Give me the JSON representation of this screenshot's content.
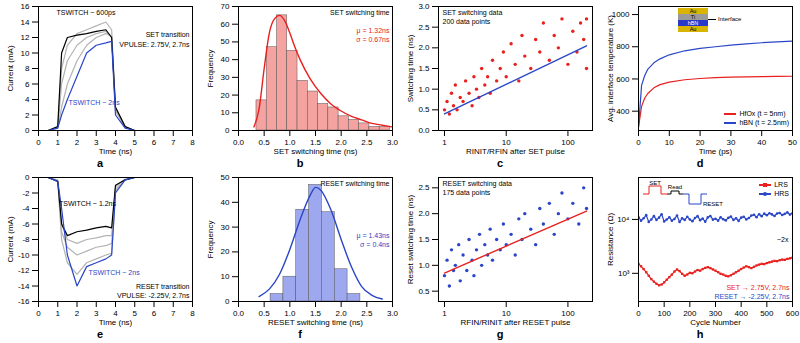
{
  "chart_data": [
    {
      "panel": "a",
      "type": "line",
      "x_label": "Time (ns)",
      "y_label": "Current (mA)",
      "xlim": [
        0,
        8
      ],
      "xticks": [
        0,
        1,
        2,
        3,
        4,
        5,
        6,
        7,
        8
      ],
      "ylim": [
        0,
        16
      ],
      "yticks": [
        0,
        2,
        4,
        6,
        8,
        10,
        12,
        14,
        16
      ],
      "x": [
        0,
        0.5,
        1,
        1.2,
        1.5,
        2,
        2.5,
        3,
        3.5,
        3.8,
        4,
        4.5,
        5,
        6,
        7,
        8
      ],
      "series": [
        {
          "color": "#b4b4b4",
          "values": [
            0,
            0,
            0.4,
            6,
            9,
            11,
            12,
            12.5,
            12.8,
            12,
            2.5,
            0.4,
            0,
            0,
            0,
            0
          ]
        },
        {
          "color": "#b4b4b4",
          "values": [
            0,
            0,
            0.3,
            3,
            6,
            9,
            11,
            12,
            12.5,
            12.2,
            2.8,
            0.4,
            0,
            0,
            0,
            0
          ]
        },
        {
          "color": "#b4b4b4",
          "values": [
            0,
            0,
            0.5,
            8,
            11,
            12.5,
            13,
            13.5,
            14,
            13,
            3,
            0.5,
            0,
            0,
            0,
            0
          ]
        },
        {
          "color": "#000000",
          "values": [
            0,
            0,
            0.5,
            10,
            12,
            12.3,
            12.5,
            12.8,
            13,
            12,
            3,
            0.5,
            0,
            0,
            0,
            0
          ]
        },
        {
          "color": "#2a46c8",
          "values": [
            0,
            0,
            0.3,
            2,
            4,
            7,
            10,
            11,
            11.3,
            11.5,
            2,
            0.3,
            0,
            0,
            0,
            0
          ]
        }
      ],
      "annotations": [
        {
          "text": "SET transition",
          "color": "#000000"
        },
        {
          "text": "VPULSE: 2.75V, 2.7ns",
          "color": "#000000"
        },
        {
          "text": "TSWITCH ~ 600ps",
          "color": "#000000"
        },
        {
          "text": "TSWITCH ~ 2ns",
          "color": "#2a46c8"
        }
      ]
    },
    {
      "panel": "b",
      "type": "histogram",
      "x_label": "SET switching time (ns)",
      "y_label": "Frequency",
      "xlim": [
        0,
        3
      ],
      "xticks": [
        {
          "value": 0,
          "label": "0.0"
        },
        0.5,
        {
          "value": 1,
          "label": "1.0"
        },
        1.5,
        {
          "value": 2,
          "label": "2.0"
        },
        2.5,
        {
          "value": 3,
          "label": "3.0"
        }
      ],
      "ylim": [
        0,
        70
      ],
      "yticks": [
        0,
        10,
        20,
        30,
        40,
        50,
        60,
        70
      ],
      "bins": [
        0.35,
        0.55,
        0.75,
        0.95,
        1.15,
        1.35,
        1.55,
        1.75,
        1.95,
        2.15,
        2.35,
        2.55,
        2.75,
        2.95
      ],
      "counts": [
        17,
        47,
        65,
        45,
        28,
        22,
        15,
        13,
        8,
        6,
        4,
        2,
        2
      ],
      "color": "#f4a3a0",
      "fit": {
        "color": "#e8201e",
        "x": [
          0.3,
          0.4,
          0.5,
          0.6,
          0.7,
          0.8,
          0.9,
          1.0,
          1.1,
          1.2,
          1.4,
          1.6,
          1.8,
          2.0,
          2.2,
          2.4,
          2.6,
          2.8,
          3.0
        ],
        "values": [
          2,
          12,
          35,
          55,
          63,
          65,
          62,
          55,
          47,
          40,
          29,
          21,
          15,
          11,
          8,
          6,
          4,
          3,
          2
        ]
      },
      "annotations": [
        {
          "text": "SET switching time",
          "color": "#000000"
        },
        {
          "text": "μ = 1.32ns",
          "color": "#e8201e"
        },
        {
          "text": "σ = 0.67ns",
          "color": "#e8201e"
        }
      ]
    },
    {
      "panel": "c",
      "type": "scatter",
      "log": "x",
      "x_label": "RINIT/RFIN after SET pulse",
      "y_label": "Switching time (ns)",
      "xlim": [
        0.8,
        250
      ],
      "xticks": [
        1,
        10,
        100
      ],
      "ylim": [
        0,
        3
      ],
      "yticks": [
        {
          "value": 0,
          "label": "0.0"
        },
        0.5,
        {
          "value": 1,
          "label": "1.0"
        },
        1.5,
        {
          "value": 2,
          "label": "2.0"
        },
        2.5,
        {
          "value": 3,
          "label": "3.0"
        }
      ],
      "color": "#e8201e",
      "x": [
        1,
        1.1,
        1.2,
        1.3,
        1.4,
        1.5,
        1.6,
        1.8,
        2,
        2.2,
        2.5,
        2.8,
        3,
        3.3,
        3.6,
        4,
        4.5,
        5,
        5.5,
        6,
        7,
        8,
        9,
        10,
        12,
        14,
        16,
        18,
        20,
        25,
        30,
        35,
        40,
        50,
        60,
        70,
        80,
        100,
        120,
        140,
        160,
        180,
        200,
        200
      ],
      "values": [
        0.5,
        0.7,
        0.4,
        0.9,
        0.6,
        1.1,
        0.5,
        0.8,
        0.7,
        1.2,
        0.9,
        0.6,
        1.3,
        1.0,
        0.8,
        1.5,
        1.1,
        1.3,
        0.9,
        1.7,
        1.2,
        1.5,
        1.9,
        1.3,
        2.1,
        1.6,
        1.2,
        2.3,
        1.8,
        1.5,
        2.2,
        1.9,
        2.6,
        1.7,
        2.3,
        2.0,
        2.7,
        1.6,
        2.4,
        1.9,
        2.6,
        2.2,
        2.7,
        1.5
      ],
      "fit": {
        "color": "#2a46c8",
        "x": [
          1,
          200
        ],
        "values": [
          0.4,
          2.05
        ]
      },
      "annotations": [
        {
          "text": "SET switching data",
          "color": "#000000"
        },
        {
          "text": "200 data points",
          "color": "#000000"
        }
      ]
    },
    {
      "panel": "d",
      "type": "line",
      "x_label": "Time (ps)",
      "y_label": "Avg. interface temperature (K)",
      "xlim": [
        0,
        50
      ],
      "xticks": [
        0,
        10,
        20,
        30,
        40,
        50
      ],
      "ylim": [
        280,
        1050
      ],
      "yticks": [
        400,
        600,
        800,
        1000
      ],
      "x": [
        0,
        1,
        2,
        3,
        5,
        7,
        10,
        15,
        20,
        25,
        30,
        35,
        40,
        45,
        50
      ],
      "series": [
        {
          "name": "HfOx (t = 5nm)",
          "color": "#e8201e",
          "values": [
            300,
            430,
            480,
            510,
            545,
            565,
            580,
            595,
            603,
            608,
            611,
            613,
            615,
            616,
            617
          ]
        },
        {
          "name": "hBN (t = 2.5nm)",
          "color": "#2a46c8",
          "values": [
            300,
            560,
            620,
            660,
            700,
            725,
            750,
            775,
            790,
            800,
            810,
            818,
            825,
            830,
            835
          ]
        }
      ],
      "legend": "bottom-right",
      "inset": {
        "layers": [
          "Au",
          "Ti",
          "hBN",
          "Au"
        ],
        "label": "Interface"
      }
    },
    {
      "panel": "e",
      "type": "line",
      "x_label": "Time (ns)",
      "y_label": "Current (mA)",
      "xlim": [
        0,
        8
      ],
      "xticks": [
        0,
        1,
        2,
        3,
        4,
        5,
        6,
        7,
        8
      ],
      "ylim": [
        -16,
        0
      ],
      "yticks": [
        -16,
        -14,
        -12,
        -10,
        -8,
        -6,
        -4,
        -2,
        0
      ],
      "x": [
        0,
        0.5,
        1,
        1.2,
        1.5,
        2,
        2.5,
        3,
        3.5,
        3.8,
        4,
        4.5,
        5,
        6,
        7,
        8
      ],
      "series": [
        {
          "color": "#b4b4b4",
          "values": [
            0,
            0,
            -0.4,
            -7,
            -9,
            -10,
            -9.5,
            -9,
            -8.8,
            -8.5,
            -1.5,
            -0.3,
            0,
            0,
            0,
            0
          ]
        },
        {
          "color": "#b4b4b4",
          "values": [
            0,
            0,
            -0.5,
            -8,
            -11,
            -12.5,
            -11,
            -10.5,
            -10,
            -9.8,
            -1.8,
            -0.3,
            0,
            0,
            0,
            0
          ]
        },
        {
          "color": "#b4b4b4",
          "values": [
            0,
            0,
            -0.3,
            -6,
            -8,
            -8.5,
            -8,
            -7.8,
            -7.5,
            -7.5,
            -1.2,
            -0.2,
            0,
            0,
            0,
            0
          ]
        },
        {
          "color": "#000000",
          "values": [
            0,
            0,
            -0.5,
            -6,
            -7.5,
            -7,
            -6.8,
            -6.5,
            -6.3,
            -6.5,
            -1,
            -0.3,
            0,
            0,
            0,
            0
          ]
        },
        {
          "color": "#2a46c8",
          "values": [
            0,
            0,
            -0.5,
            -4,
            -10,
            -14,
            -11.5,
            -11,
            -10.5,
            -10,
            -2,
            -0.3,
            0,
            0,
            0,
            0
          ]
        }
      ],
      "annotations": [
        {
          "text": "RESET transition",
          "color": "#000000"
        },
        {
          "text": "VPULSE: -2.25V, 2.7ns",
          "color": "#000000"
        },
        {
          "text": "TSWITCH ~ 1.2ns",
          "color": "#000000"
        },
        {
          "text": "TSWITCH ~ 2ns",
          "color": "#2a46c8"
        }
      ]
    },
    {
      "panel": "f",
      "type": "histogram",
      "x_label": "RESET switching time (ns)",
      "y_label": "Frequency",
      "xlim": [
        0,
        3
      ],
      "xticks": [
        {
          "value": 0,
          "label": "0.0"
        },
        0.5,
        {
          "value": 1,
          "label": "1.0"
        },
        1.5,
        {
          "value": 2,
          "label": "2.0"
        },
        2.5,
        {
          "value": 3,
          "label": "3.0"
        }
      ],
      "ylim": [
        0,
        50
      ],
      "yticks": [
        0,
        10,
        20,
        30,
        40,
        50
      ],
      "bins": [
        0.625,
        0.875,
        1.125,
        1.375,
        1.625,
        1.875,
        2.125,
        2.375
      ],
      "counts": [
        3,
        10,
        37,
        47,
        36,
        13,
        3
      ],
      "color": "#9ea8ee",
      "fit": {
        "color": "#2a46c8",
        "x": [
          0.4,
          0.6,
          0.8,
          1.0,
          1.2,
          1.4,
          1.5,
          1.6,
          1.8,
          2.0,
          2.2,
          2.4,
          2.6,
          2.8
        ],
        "values": [
          2,
          5,
          11,
          21,
          33,
          43,
          46,
          45,
          37,
          25,
          14,
          6,
          2.5,
          1
        ]
      },
      "annotations": [
        {
          "text": "RESET switching time",
          "color": "#000000"
        },
        {
          "text": "μ = 1.43ns",
          "color": "#2a46c8"
        },
        {
          "text": "σ = 0.4ns",
          "color": "#2a46c8"
        }
      ]
    },
    {
      "panel": "g",
      "type": "scatter",
      "log": "x",
      "x_label": "RFIN/RINIT after RESET pulse",
      "y_label": "Reset switching time (ns)",
      "xlim": [
        0.8,
        250
      ],
      "xticks": [
        1,
        10,
        100
      ],
      "ylim": [
        0.3,
        2.7
      ],
      "yticks": [
        0.5,
        {
          "value": 1,
          "label": "1.0"
        },
        1.5,
        {
          "value": 2,
          "label": "2.0"
        },
        2.5
      ],
      "color": "#2a46c8",
      "x": [
        1,
        1.1,
        1.2,
        1.3,
        1.4,
        1.5,
        1.7,
        1.8,
        2,
        2.3,
        2.5,
        2.8,
        3,
        3.3,
        3.7,
        4,
        4.5,
        5,
        5.5,
        6,
        7,
        8,
        9,
        10,
        12,
        14,
        16,
        18,
        20,
        25,
        30,
        35,
        40,
        50,
        60,
        70,
        80,
        100,
        120,
        150,
        180,
        200
      ],
      "values": [
        0.8,
        1.1,
        0.6,
        1.3,
        0.9,
        1.0,
        1.4,
        0.7,
        1.2,
        0.9,
        1.5,
        1.1,
        0.8,
        1.3,
        1.6,
        1.0,
        1.4,
        1.2,
        1.7,
        1.1,
        1.5,
        1.3,
        1.8,
        1.4,
        1.6,
        1.2,
        1.9,
        1.5,
        2.0,
        1.7,
        1.4,
        2.1,
        1.8,
        2.2,
        1.6,
        2.0,
        2.4,
        1.9,
        2.2,
        1.8,
        2.5,
        2.1
      ],
      "fit": {
        "color": "#e8201e",
        "x": [
          1,
          200
        ],
        "values": [
          0.85,
          2.05
        ]
      },
      "annotations": [
        {
          "text": "RESET switching data",
          "color": "#000000"
        },
        {
          "text": "175 data points",
          "color": "#000000"
        }
      ]
    },
    {
      "panel": "h",
      "type": "line",
      "log": "y",
      "x_label": "Cycle Number",
      "y_label": "Resistance (Ω)",
      "xlim": [
        0,
        600
      ],
      "xticks": [
        0,
        100,
        200,
        300,
        400,
        500,
        600
      ],
      "ylim": [
        300,
        60000
      ],
      "yticks": [
        {
          "value": 1000,
          "label": "10³"
        },
        {
          "value": 10000,
          "label": "10⁴"
        }
      ],
      "x": [
        0,
        10,
        20,
        30,
        40,
        50,
        60,
        70,
        80,
        90,
        100,
        110,
        120,
        130,
        140,
        150,
        160,
        170,
        180,
        190,
        200,
        210,
        220,
        230,
        240,
        250,
        260,
        270,
        280,
        290,
        300,
        310,
        320,
        330,
        340,
        350,
        360,
        370,
        380,
        390,
        400,
        410,
        420,
        430,
        440,
        450,
        460,
        470,
        480,
        490,
        500,
        510,
        520,
        530,
        540,
        550,
        560,
        570,
        580,
        590,
        600
      ],
      "series": [
        {
          "name": "LRS",
          "color": "#e8201e",
          "marker": "square",
          "values": [
            1500,
            1350,
            1200,
            1050,
            900,
            780,
            700,
            640,
            600,
            620,
            680,
            760,
            850,
            950,
            1080,
            1180,
            1100,
            980,
            900,
            950,
            1020,
            1000,
            1080,
            1150,
            1120,
            1200,
            1260,
            1300,
            1250,
            1180,
            1120,
            1050,
            980,
            950,
            900,
            880,
            920,
            980,
            1050,
            1120,
            1200,
            1280,
            1350,
            1300,
            1250,
            1320,
            1400,
            1450,
            1500,
            1480,
            1550,
            1600,
            1650,
            1700,
            1680,
            1750,
            1800,
            1780,
            1850,
            1900,
            1950
          ]
        },
        {
          "name": "HRS",
          "color": "#2a46c8",
          "marker": "circle",
          "values": [
            11000,
            9500,
            10500,
            12000,
            9000,
            10000,
            11500,
            9800,
            10800,
            12500,
            9200,
            10000,
            11000,
            9500,
            10200,
            11800,
            9000,
            10500,
            9800,
            11200,
            10000,
            9300,
            10600,
            11500,
            9700,
            10400,
            9100,
            10900,
            11600,
            9900,
            10300,
            9500,
            11000,
            10100,
            9600,
            10700,
            11300,
            9800,
            10500,
            9400,
            10800,
            11200,
            10000,
            10600,
            11800,
            12200,
            11000,
            12500,
            11500,
            12800,
            12000,
            13000,
            12400,
            11600,
            12900,
            13200,
            12100,
            12700,
            13500,
            12300,
            13000
          ]
        }
      ],
      "legend": "top-right",
      "inset": [
        "SET",
        "Read",
        "RESET"
      ],
      "annotations": [
        {
          "text": "~2x",
          "color": "#000000"
        },
        {
          "text": "SET → 2.75V, 2.7ns",
          "color": "#e8201e"
        },
        {
          "text": "RESET → -2.25V, 2.7ns",
          "color": "#2a46c8"
        }
      ]
    }
  ]
}
